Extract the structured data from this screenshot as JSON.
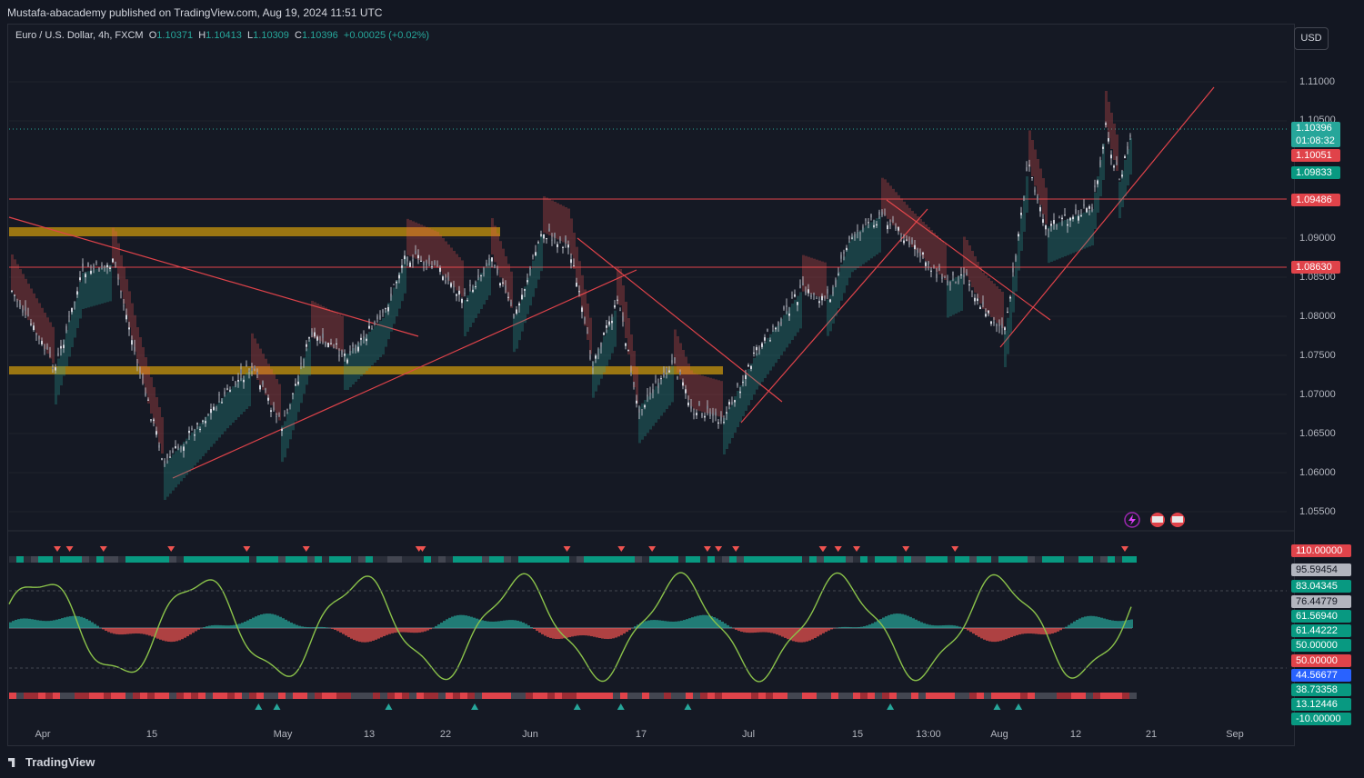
{
  "publisher_line": "Mustafa-abacademy published on TradingView.com, Aug 19, 2024 11:51 UTC",
  "legend": {
    "symbol": "Euro / U.S. Dollar, 4h, FXCM",
    "o_key": "O",
    "o_val": "1.10371",
    "h_key": "H",
    "h_val": "1.10413",
    "l_key": "L",
    "l_val": "1.10309",
    "c_key": "C",
    "c_val": "1.10396",
    "change": "+0.00025 (+0.02%)"
  },
  "currency_button": "USD",
  "price_axis": [
    "1.11000",
    "1.10500",
    "1.09000",
    "1.08500",
    "1.08000",
    "1.07500",
    "1.07000",
    "1.06500",
    "1.06000",
    "1.05500"
  ],
  "price_tags": {
    "last_price": "1.10396",
    "countdown": "01:08:32",
    "level_red_1": "1.10051",
    "level_green": "1.09833",
    "level_red_2": "1.09486",
    "level_red_3": "1.08630"
  },
  "indicator_tags": [
    "110.00000",
    "95.59454",
    "83.04345",
    "76.44779",
    "61.56940",
    "61.44222",
    "50.00000",
    "50.00000",
    "44.56677",
    "38.73358",
    "13.12446",
    "-10.00000"
  ],
  "time_axis": [
    "Apr",
    "15",
    "May",
    "13",
    "22",
    "Jun",
    "17",
    "Jul",
    "15",
    "13:00",
    "Aug",
    "12",
    "21",
    "Sep"
  ],
  "footer_logo": "TradingView",
  "colors": {
    "bg": "#131722",
    "up": "#26a69a",
    "down": "#ef5350",
    "zone": "#c8960c",
    "trendline": "#e0434a",
    "osc_line": "#8bc34a"
  },
  "icons": [
    "flash-event-icon",
    "us-flag-event-icon",
    "us-flag-event-icon"
  ]
}
